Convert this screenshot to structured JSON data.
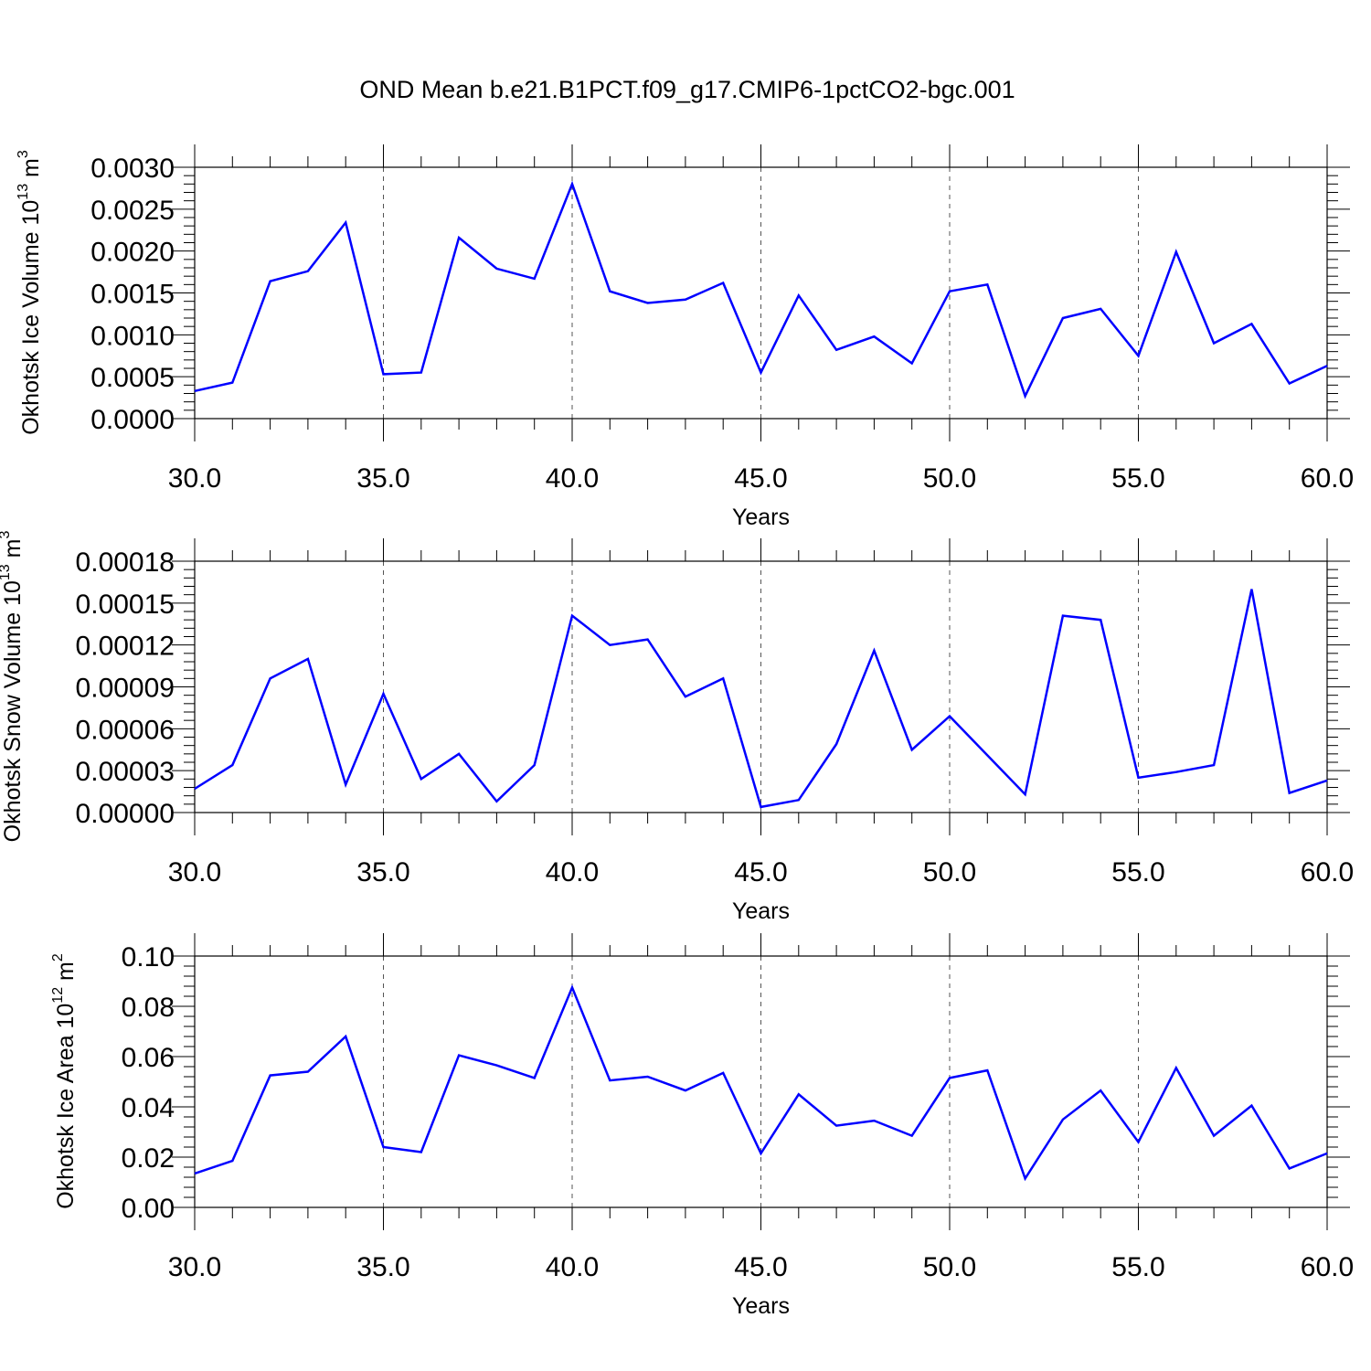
{
  "title": "OND Mean b.e21.B1PCT.f09_g17.CMIP6-1pctCO2-bgc.001",
  "line_color": "#0000ff",
  "chart_data": [
    {
      "type": "line",
      "title": "",
      "xlabel": "Years",
      "ylabel": {
        "main": "Okhotsk Ice Volume 10",
        "exp": "13",
        "unit": " m",
        "unit_exp": "3"
      },
      "xlim": [
        30,
        60
      ],
      "ylim": [
        0,
        0.003
      ],
      "xticks": [
        "30.0",
        "35.0",
        "40.0",
        "45.0",
        "50.0",
        "55.0",
        "60.0"
      ],
      "yticks": [
        "0.0000",
        "0.0005",
        "0.0010",
        "0.0015",
        "0.0020",
        "0.0025",
        "0.0030"
      ],
      "grid": "dashed vertical lines at major x ticks",
      "series": [
        {
          "x": [
            30,
            31,
            32,
            33,
            34,
            35,
            36,
            37,
            38,
            39,
            40,
            41,
            42,
            43,
            44,
            45,
            46,
            47,
            48,
            49,
            50,
            51,
            52,
            53,
            54,
            55,
            56,
            57,
            58,
            59,
            60
          ],
          "values": [
            0.00033,
            0.00043,
            0.00164,
            0.00176,
            0.00234,
            0.00053,
            0.00055,
            0.00216,
            0.00179,
            0.00167,
            0.0028,
            0.00152,
            0.00138,
            0.00142,
            0.00162,
            0.00055,
            0.00147,
            0.00082,
            0.00098,
            0.00066,
            0.00152,
            0.0016,
            0.00027,
            0.0012,
            0.00131,
            0.00075,
            0.00199,
            0.0009,
            0.00113,
            0.00042,
            0.00063
          ]
        }
      ]
    },
    {
      "type": "line",
      "title": "",
      "xlabel": "Years",
      "ylabel": {
        "main": "Okhotsk Snow Volume 10",
        "exp": "13",
        "unit": " m",
        "unit_exp": "3"
      },
      "xlim": [
        30,
        60
      ],
      "ylim": [
        0,
        0.00018
      ],
      "xticks": [
        "30.0",
        "35.0",
        "40.0",
        "45.0",
        "50.0",
        "55.0",
        "60.0"
      ],
      "yticks": [
        "0.00000",
        "0.00003",
        "0.00006",
        "0.00009",
        "0.00012",
        "0.00015",
        "0.00018"
      ],
      "grid": "dashed vertical lines at major x ticks",
      "series": [
        {
          "x": [
            30,
            31,
            32,
            33,
            34,
            35,
            36,
            37,
            38,
            39,
            40,
            41,
            42,
            43,
            44,
            45,
            46,
            47,
            48,
            49,
            50,
            51,
            52,
            53,
            54,
            55,
            56,
            57,
            58,
            59,
            60
          ],
          "values": [
            1.7e-05,
            3.4e-05,
            9.6e-05,
            0.00011,
            2e-05,
            8.5e-05,
            2.4e-05,
            4.2e-05,
            8e-06,
            3.4e-05,
            0.000141,
            0.00012,
            0.000124,
            8.3e-05,
            9.6e-05,
            4e-06,
            9e-06,
            4.9e-05,
            0.000116,
            4.5e-05,
            6.9e-05,
            4.1e-05,
            1.3e-05,
            0.000141,
            0.000138,
            2.5e-05,
            2.9e-05,
            3.4e-05,
            0.00016,
            1.4e-05,
            2.3e-05
          ]
        }
      ]
    },
    {
      "type": "line",
      "title": "",
      "xlabel": "Years",
      "ylabel": {
        "main": "Okhotsk Ice Area 10",
        "exp": "12",
        "unit": " m",
        "unit_exp": "2"
      },
      "xlim": [
        30,
        60
      ],
      "ylim": [
        0,
        0.1
      ],
      "xticks": [
        "30.0",
        "35.0",
        "40.0",
        "45.0",
        "50.0",
        "55.0",
        "60.0"
      ],
      "yticks": [
        "0.00",
        "0.02",
        "0.04",
        "0.06",
        "0.08",
        "0.10"
      ],
      "grid": "dashed vertical lines at major x ticks",
      "series": [
        {
          "x": [
            30,
            31,
            32,
            33,
            34,
            35,
            36,
            37,
            38,
            39,
            40,
            41,
            42,
            43,
            44,
            45,
            46,
            47,
            48,
            49,
            50,
            51,
            52,
            53,
            54,
            55,
            56,
            57,
            58,
            59,
            60
          ],
          "values": [
            0.0135,
            0.0185,
            0.0525,
            0.054,
            0.068,
            0.024,
            0.022,
            0.0605,
            0.0565,
            0.0515,
            0.0875,
            0.0505,
            0.052,
            0.0465,
            0.0535,
            0.0215,
            0.045,
            0.0325,
            0.0345,
            0.0285,
            0.0515,
            0.0545,
            0.0115,
            0.035,
            0.0465,
            0.026,
            0.0555,
            0.0285,
            0.0405,
            0.0155,
            0.0215
          ]
        }
      ]
    }
  ]
}
